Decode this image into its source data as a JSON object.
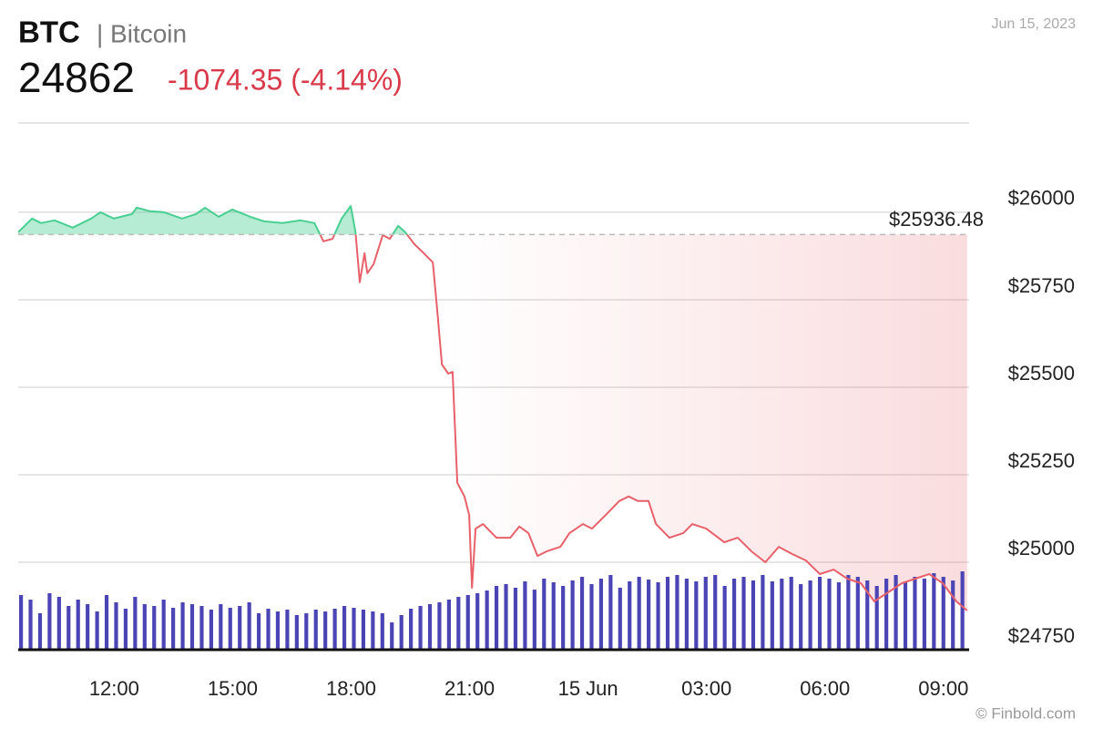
{
  "header": {
    "ticker": "BTC",
    "name": "| Bitcoin",
    "price": "24862",
    "change": "-1074.35 (-4.14%)",
    "date": "Jun 15, 2023"
  },
  "footer": {
    "credit": "© Finbold.com"
  },
  "chart_data": {
    "type": "line",
    "x": [
      9.57,
      9.92,
      10.15,
      10.49,
      10.95,
      11.42,
      11.65,
      11.99,
      12.45,
      12.57,
      12.91,
      13.26,
      13.72,
      14.07,
      14.3,
      14.65,
      14.99,
      15.45,
      15.8,
      16.26,
      16.72,
      17.07,
      17.3,
      17.53,
      17.76,
      17.99,
      18.11,
      18.22,
      18.34,
      18.41,
      18.57,
      18.8,
      18.98,
      19.19,
      19.37,
      19.6,
      19.84,
      20.07,
      20.18,
      20.3,
      20.46,
      20.57,
      20.69,
      20.87,
      20.99,
      21.06,
      21.15,
      21.34,
      21.68,
      22.03,
      22.26,
      22.49,
      22.72,
      22.95,
      23.3,
      23.53,
      23.87,
      24.1,
      24.45,
      24.79,
      25.03,
      25.26,
      25.53,
      25.72,
      26.06,
      26.41,
      26.64,
      26.99,
      27.45,
      27.79,
      28.14,
      28.49,
      28.83,
      29.18,
      29.52,
      29.87,
      30.22,
      30.56,
      30.91,
      31.25,
      31.6,
      31.95,
      32.29,
      32.64,
      32.98,
      33.33,
      33.6
    ],
    "series": [
      {
        "values": [
          25943,
          25982,
          25969,
          25977,
          25956,
          25982,
          26000,
          25982,
          25995,
          26013,
          26003,
          26000,
          25982,
          25995,
          26013,
          25987,
          26008,
          25987,
          25974,
          25969,
          25977,
          25969,
          25917,
          25924,
          25982,
          26018,
          25943,
          25800,
          25883,
          25826,
          25852,
          25935,
          25924,
          25961,
          25943,
          25909,
          25883,
          25857,
          25721,
          25565,
          25539,
          25544,
          25227,
          25188,
          25135,
          24927,
          25096,
          25109,
          25070,
          25070,
          25102,
          25083,
          25018,
          25031,
          25044,
          25083,
          25109,
          25096,
          25135,
          25175,
          25188,
          25175,
          25175,
          25109,
          25070,
          25083,
          25109,
          25096,
          25057,
          25070,
          25031,
          25000,
          25044,
          25023,
          25005,
          24966,
          24979,
          24953,
          24940,
          24888,
          24914,
          24940,
          24953,
          24966,
          24940,
          24888,
          24862
        ]
      }
    ],
    "colors": {
      "above": "#49cf92",
      "below": "#e8616a"
    },
    "reference": {
      "value": 25936.48,
      "label": "$25936.48"
    },
    "volume": {
      "color": "#4a44b4",
      "values": [
        60,
        55,
        40,
        62,
        58,
        48,
        55,
        50,
        42,
        60,
        52,
        45,
        58,
        50,
        48,
        55,
        46,
        52,
        50,
        48,
        44,
        50,
        46,
        48,
        52,
        40,
        45,
        42,
        44,
        38,
        40,
        44,
        42,
        45,
        48,
        46,
        44,
        42,
        40,
        30,
        38,
        45,
        48,
        50,
        52,
        55,
        58,
        60,
        62,
        65,
        70,
        72,
        68,
        75,
        66,
        78,
        74,
        70,
        76,
        80,
        72,
        78,
        82,
        68,
        75,
        80,
        77,
        74,
        80,
        82,
        78,
        75,
        80,
        82,
        70,
        78,
        80,
        76,
        82,
        75,
        78,
        80,
        72,
        76,
        80,
        78,
        74,
        82,
        80,
        76,
        70,
        78,
        82,
        74,
        80,
        78,
        84,
        80,
        76,
        86
      ]
    },
    "xlim": [
      9.57,
      33.65
    ],
    "xticks": [
      {
        "value": 12,
        "label": "12:00"
      },
      {
        "value": 15,
        "label": "15:00"
      },
      {
        "value": 18,
        "label": "18:00"
      },
      {
        "value": 21,
        "label": "21:00"
      },
      {
        "value": 24,
        "label": "15 Jun"
      },
      {
        "value": 27,
        "label": "03:00"
      },
      {
        "value": 30,
        "label": "06:00"
      },
      {
        "value": 33,
        "label": "09:00"
      }
    ],
    "ylim": [
      24750,
      26255
    ],
    "yticks": [
      {
        "value": 24750,
        "label": "$24750"
      },
      {
        "value": 25000,
        "label": "$25000"
      },
      {
        "value": 25250,
        "label": "$25250"
      },
      {
        "value": 25500,
        "label": "$25500"
      },
      {
        "value": 25750,
        "label": "$25750"
      },
      {
        "value": 26000,
        "label": "$26000"
      }
    ],
    "grid": true
  }
}
